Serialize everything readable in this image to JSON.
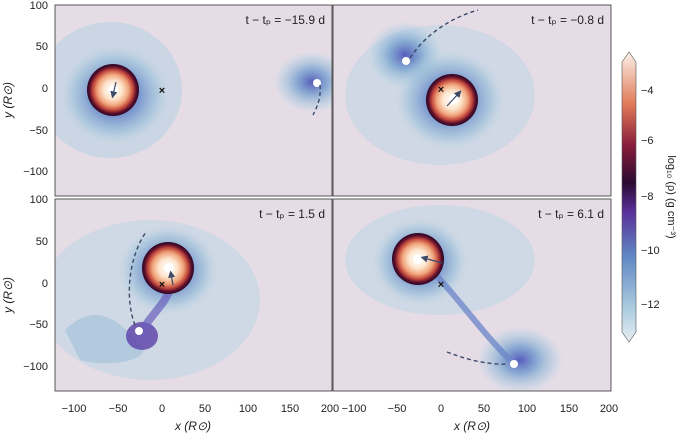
{
  "panels": [
    {
      "label": "t − tₚ = −15.9 d"
    },
    {
      "label": "t − tₚ = −0.8 d"
    },
    {
      "label": "t − tₚ = 1.5 d"
    },
    {
      "label": "t − tₚ = 6.1 d"
    }
  ],
  "axes": {
    "xlabel": "x (R⊙)",
    "ylabel": "y (R⊙)",
    "xticks": [
      "−100",
      "−50",
      "0",
      "50",
      "100",
      "150",
      "200"
    ],
    "yticks": [
      "100",
      "50",
      "0",
      "−50",
      "−100"
    ]
  },
  "colorbar": {
    "label": "log₁₀ (ρ) (g cm⁻³)",
    "ticks": [
      "−4",
      "−6",
      "−8",
      "−10",
      "−12"
    ]
  },
  "colors": {
    "background": "#e6dce6",
    "diffuse": "#9cc0d8",
    "core_hot": "#ffe9c8",
    "ring": "#3a0c2a"
  }
}
